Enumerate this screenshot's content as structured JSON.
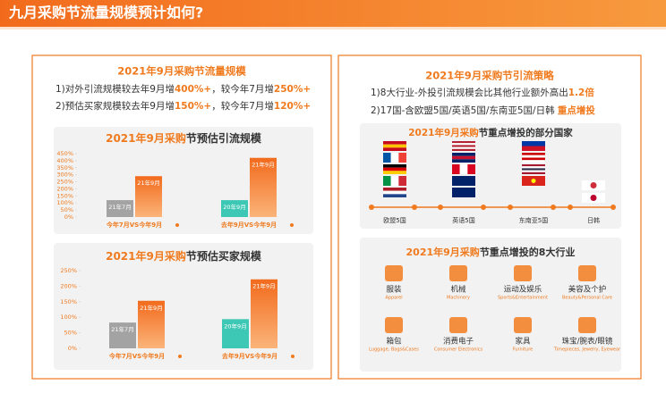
{
  "header": {
    "title": "九月采购节流量规模预计如何?"
  },
  "left": {
    "title": "2021年9月采购节流量规模",
    "lines": [
      [
        "1)对外引流规模较去年9月增",
        "400%+",
        "，较今年7月增",
        "250%+"
      ],
      [
        "2)预估买家规模较去年9月增",
        "150%+",
        "，较今年7月增",
        "120%+"
      ]
    ]
  },
  "chart_data": [
    {
      "type": "bar",
      "title": "2021年9月采购节预估引流规模",
      "categories": [
        "今年7月VS今年9月",
        "去年9月VS今年9月"
      ],
      "values": [
        [
          120,
          290
        ],
        [
          120,
          420
        ]
      ],
      "bar_labels": [
        [
          "21年7月",
          "21年9月"
        ],
        [
          "20年9月",
          "21年9月"
        ]
      ],
      "colors": [
        [
          "#a3a3a3",
          "#f07a1e"
        ],
        [
          "#3cc8b4",
          "#f07a1e"
        ]
      ],
      "ylim": [
        0,
        450
      ],
      "yticks": [
        {
          "value": 0,
          "label": "0%"
        },
        {
          "value": 50,
          "label": "50%"
        },
        {
          "value": 100,
          "label": "100%"
        },
        {
          "value": 150,
          "label": "150%"
        },
        {
          "value": 200,
          "label": "200%"
        },
        {
          "value": 250,
          "label": "250%"
        },
        {
          "value": 300,
          "label": "300%"
        },
        {
          "value": 350,
          "label": "350%"
        },
        {
          "value": 400,
          "label": "400%"
        },
        {
          "value": 450,
          "label": "450%"
        }
      ]
    },
    {
      "type": "bar",
      "title": "2021年9月采购节预估买家规模",
      "categories": [
        "今年7月VS今年9月",
        "去年9月VS今年9月"
      ],
      "values": [
        [
          83,
          153
        ],
        [
          94,
          222
        ]
      ],
      "bar_labels": [
        [
          "21年7月",
          "21年9月"
        ],
        [
          "20年9月",
          "21年9月"
        ]
      ],
      "colors": [
        [
          "#a3a3a3",
          "#f07a1e"
        ],
        [
          "#3cc8b4",
          "#f07a1e"
        ]
      ],
      "ylim": [
        0,
        250
      ],
      "yticks": [
        {
          "value": 0,
          "label": "0%"
        },
        {
          "value": 50,
          "label": "50%"
        },
        {
          "value": 100,
          "label": "100%"
        },
        {
          "value": 150,
          "label": "150%"
        },
        {
          "value": 200,
          "label": "200%"
        },
        {
          "value": 250,
          "label": "250%"
        }
      ]
    }
  ],
  "right": {
    "title": "2021年9月采购节引流策略",
    "lines": [
      [
        "1)8大行业-外投引流规模会比其他行业额外高出",
        "1.2倍"
      ],
      [
        "2)17国-含欧盟5国/英语5国/东南亚5国/日韩 ",
        "重点增投"
      ]
    ],
    "countries": {
      "title": "2021年9月采购节重点增投的部分国家",
      "groups": [
        "欧盟5国",
        "英语5国",
        "东南亚5国",
        "日韩"
      ]
    },
    "industries": {
      "title": "2021年9月采购节重点增投的8大行业",
      "items": [
        {
          "name": "服装",
          "en": "Apparel"
        },
        {
          "name": "机械",
          "en": "Machinery"
        },
        {
          "name": "运动及娱乐",
          "en": "Sports&Entertainment"
        },
        {
          "name": "美容及个护",
          "en": "Beauty&Personal Care"
        },
        {
          "name": "箱包",
          "en": "Luggage, Bags&Cases"
        },
        {
          "name": "消费电子",
          "en": "Consumer Electronics"
        },
        {
          "name": "家具",
          "en": "Furniture"
        },
        {
          "name": "珠宝/腕表/眼镜",
          "en": "Timepieces, Jewelry, Eyewear"
        }
      ]
    }
  }
}
